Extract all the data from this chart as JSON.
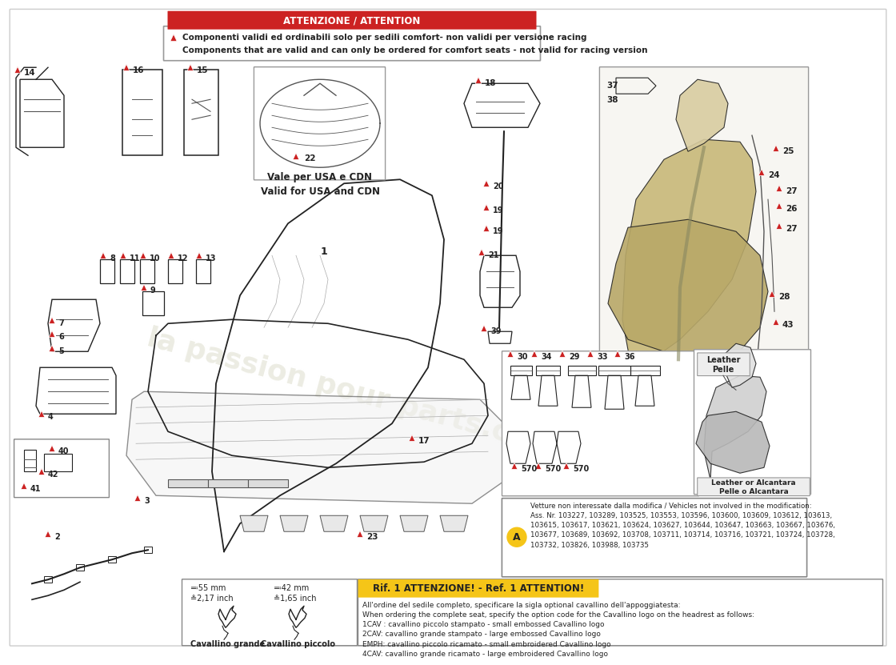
{
  "bg": "#ffffff",
  "warning_text_it": "Componenti validi ed ordinabili solo per sedili comfort- non validi per versione racing",
  "warning_text_en": "Components that are valid and can only be ordered for comfort seats - not valid for racing version",
  "usa_cdn_text": "Vale per USA e CDN\nValid for USA and CDN",
  "vehicles_text": "Vetture non interessate dalla modifica / Vehicles not involved in the modification:\nAss. Nr. 103227, 103289, 103525, 103553, 103596, 103600, 103609, 103612, 103613,\n103615, 103617, 103621, 103624, 103627, 103644, 103647, 103663, 103667, 103676,\n103677, 103689, 103692, 103708, 103711, 103714, 103716, 103721, 103724, 103728,\n103732, 103826, 103988, 103735",
  "attention_title": "Rif. 1 ATTENZIONE! - Ref. 1 ATTENTION!",
  "attention_body": "All'ordine del sedile completo, specificare la sigla optional cavallino dell'appoggiatesta:\nWhen ordering the complete seat, specify the option code for the Cavallino logo on the headrest as follows:\n1CAV : cavallino piccolo stampato - small embossed Cavallino logo\n2CAV: cavallino grande stampato - large embossed Cavallino logo\nEMPH: cavallino piccolo ricamato - small embroidered Cavallino logo\n4CAV: cavallino grande ricamato - large embroidered Cavallino logo",
  "leather_label": "Leather\nPelle",
  "leather_alcantara": "Leather or Alcantara\nPelle o Alcantara",
  "cavallino_grande_size": "≕55 mm\n≗2,17 inch",
  "cavallino_piccolo_size": "≕42 mm\n≗1,65 inch",
  "cavallino_grande_label": "Cavallino grande",
  "cavallino_piccolo_label": "Cavallino piccolo",
  "watermark": "la passion pour parts.com",
  "red": "#cc2222",
  "yellow": "#f5c518",
  "dark": "#222222",
  "mid": "#555555",
  "light": "#aaaaaa"
}
